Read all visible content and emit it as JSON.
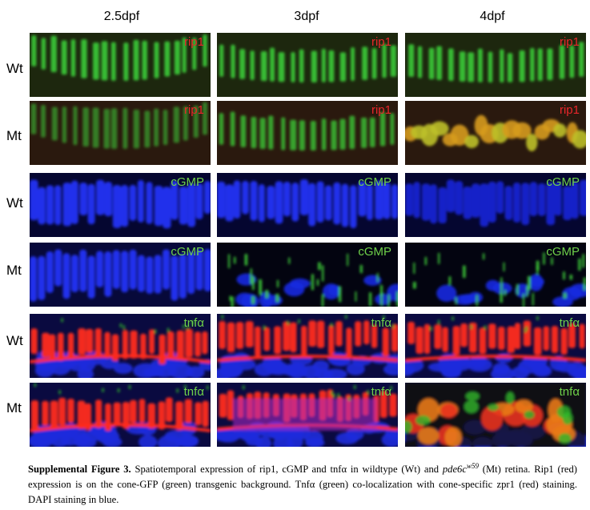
{
  "figure": {
    "columns": [
      "2.5dpf",
      "3dpf",
      "4dpf"
    ],
    "rows": [
      {
        "label": "Wt",
        "marker": "rip1",
        "marker_color": "#e8262a",
        "style": "rip-wt"
      },
      {
        "label": "Mt",
        "marker": "rip1",
        "marker_color": "#e8262a",
        "style": "rip-mt"
      },
      {
        "label": "Wt",
        "marker": "cGMP",
        "marker_color": "#6fd14a",
        "style": "cgmp-wt"
      },
      {
        "label": "Mt",
        "marker": "cGMP",
        "marker_color": "#6fd14a",
        "style": "cgmp-mt"
      },
      {
        "label": "Wt",
        "marker": "tnfα",
        "marker_color": "#6fd14a",
        "style": "tnf-wt"
      },
      {
        "label": "Mt",
        "marker": "tnfα",
        "marker_color": "#6fd14a",
        "style": "tnf-mt"
      }
    ]
  },
  "caption": {
    "title": "Supplemental Figure 3.",
    "text_1": " Spatiotemporal expression of rip1, cGMP and tnfα in wildtype (Wt) and ",
    "gene": "pde6c",
    "allele": "w59",
    "text_2": " (Mt) retina. Rip1 (red) expression is on the cone-GFP (green) transgenic background. Tnfα (green) co-localization with cone-specific zpr1 (red) staining. DAPI staining in blue."
  }
}
